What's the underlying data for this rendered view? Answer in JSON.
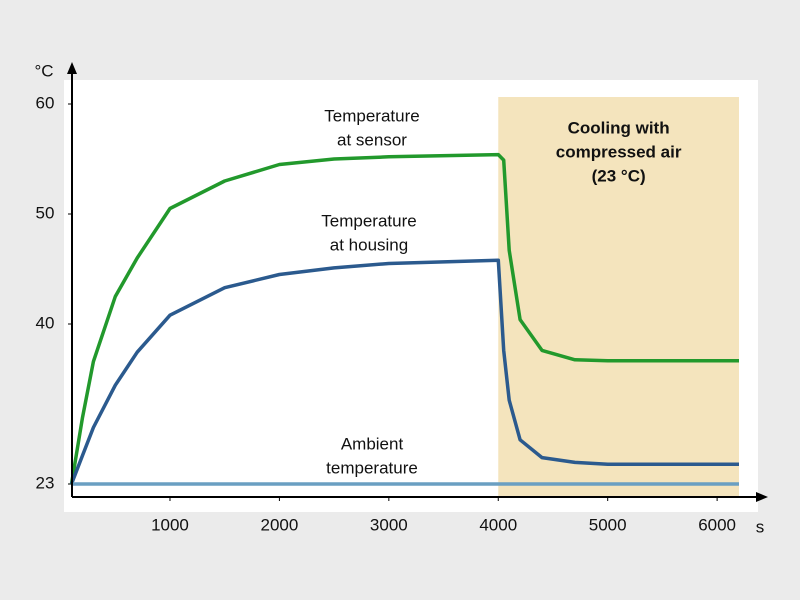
{
  "chart_data": {
    "type": "line",
    "y_unit": "°C",
    "x_unit": "s",
    "xlim": [
      100,
      6200
    ],
    "xticks": [
      1000,
      2000,
      3000,
      4000,
      5000,
      6000
    ],
    "ylim": [
      23,
      60
    ],
    "yticks": [
      23,
      40,
      50,
      60
    ],
    "region": {
      "x": [
        4000,
        6200
      ],
      "color": "#f4e4bd",
      "label_lines": [
        "Cooling with",
        "compressed air",
        "(23 °C)"
      ]
    },
    "x": [
      100,
      200,
      300,
      500,
      700,
      1000,
      1500,
      2000,
      2500,
      3000,
      4000,
      4050,
      4100,
      4200,
      4400,
      4700,
      5000,
      6200
    ],
    "series": [
      {
        "label_lines": [
          "Temperature",
          "at sensor"
        ],
        "color": "#22992c",
        "values": [
          23,
          30,
          36,
          42.5,
          46,
          50.5,
          53,
          54.5,
          55,
          55.2,
          55.4,
          54.9,
          46.7,
          40.4,
          37.2,
          36.2,
          36.1,
          36.1
        ]
      },
      {
        "label_lines": [
          "Temperature",
          "at housing"
        ],
        "color": "#2b5a8e",
        "values": [
          23,
          26,
          29,
          33.5,
          37,
          40.8,
          43.3,
          44.5,
          45.1,
          45.5,
          45.8,
          37.2,
          31.9,
          27.7,
          25.8,
          25.3,
          25.1,
          25.1
        ]
      },
      {
        "label_lines": [
          "Ambient",
          "temperature"
        ],
        "color": "#6a9fc2",
        "values": [
          23,
          23,
          23,
          23,
          23,
          23,
          23,
          23,
          23,
          23,
          23,
          23,
          23,
          23,
          23,
          23,
          23,
          23
        ]
      }
    ]
  }
}
